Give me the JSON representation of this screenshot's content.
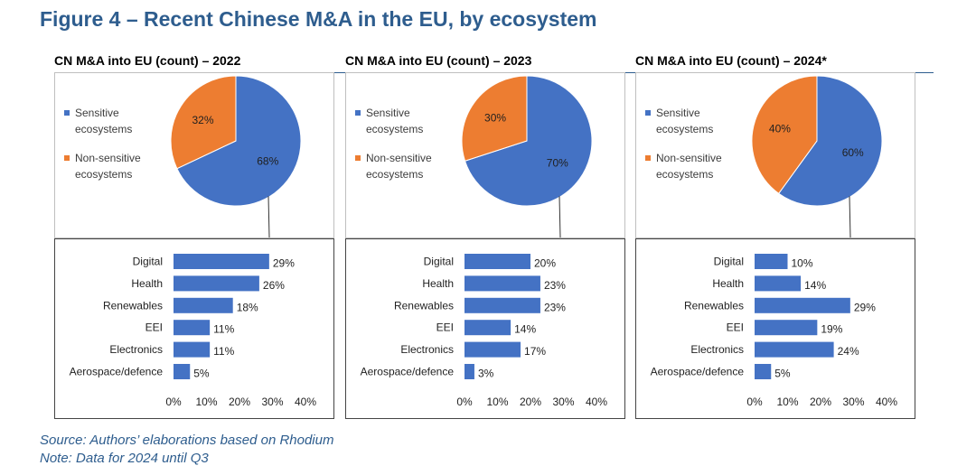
{
  "figure_title": "Figure 4 – Recent Chinese M&A in the EU, by ecosystem",
  "source": "Source: Authors’ elaborations based on Rhodium",
  "note": "Note: Data for 2024 until Q3",
  "colors": {
    "sensitive": "#4472c4",
    "non_sensitive": "#ed7d31",
    "title": "#2e5d8e"
  },
  "panels": [
    {
      "title": "CN M&A into EU (count) – 2022",
      "legend": {
        "sensitive": "Sensitive ecosystems",
        "non_sensitive": "Non-sensitive ecosystems"
      },
      "pie": {
        "sensitive_pct": 68,
        "non_sensitive_pct": 32,
        "sensitive_label": "68%",
        "non_sensitive_label": "32%"
      },
      "bars": [
        {
          "label": "Digital",
          "value": 29,
          "value_label": "29%"
        },
        {
          "label": "Health",
          "value": 26,
          "value_label": "26%"
        },
        {
          "label": "Renewables",
          "value": 18,
          "value_label": "18%"
        },
        {
          "label": "EEI",
          "value": 11,
          "value_label": "11%"
        },
        {
          "label": "Electronics",
          "value": 11,
          "value_label": "11%"
        },
        {
          "label": "Aerospace/defence",
          "value": 5,
          "value_label": "5%"
        }
      ],
      "x_ticks": [
        "0%",
        "10%",
        "20%",
        "30%",
        "40%"
      ]
    },
    {
      "title": "CN M&A into EU (count) – 2023",
      "legend": {
        "sensitive": "Sensitive ecosystems",
        "non_sensitive": "Non-sensitive ecosystems"
      },
      "pie": {
        "sensitive_pct": 70,
        "non_sensitive_pct": 30,
        "sensitive_label": "70%",
        "non_sensitive_label": "30%"
      },
      "bars": [
        {
          "label": "Digital",
          "value": 20,
          "value_label": "20%"
        },
        {
          "label": "Health",
          "value": 23,
          "value_label": "23%"
        },
        {
          "label": "Renewables",
          "value": 23,
          "value_label": "23%"
        },
        {
          "label": "EEI",
          "value": 14,
          "value_label": "14%"
        },
        {
          "label": "Electronics",
          "value": 17,
          "value_label": "17%"
        },
        {
          "label": "Aerospace/defence",
          "value": 3,
          "value_label": "3%"
        }
      ],
      "x_ticks": [
        "0%",
        "10%",
        "20%",
        "30%",
        "40%"
      ]
    },
    {
      "title": "CN M&A into EU (count) – 2024*",
      "legend": {
        "sensitive": "Sensitive ecosystems",
        "non_sensitive": "Non-sensitive ecosystems"
      },
      "pie": {
        "sensitive_pct": 60,
        "non_sensitive_pct": 40,
        "sensitive_label": "60%",
        "non_sensitive_label": "40%"
      },
      "bars": [
        {
          "label": "Digital",
          "value": 10,
          "value_label": "10%"
        },
        {
          "label": "Health",
          "value": 14,
          "value_label": "14%"
        },
        {
          "label": "Renewables",
          "value": 29,
          "value_label": "29%"
        },
        {
          "label": "EEI",
          "value": 19,
          "value_label": "19%"
        },
        {
          "label": "Electronics",
          "value": 24,
          "value_label": "24%"
        },
        {
          "label": "Aerospace/defence",
          "value": 5,
          "value_label": "5%"
        }
      ],
      "x_ticks": [
        "0%",
        "10%",
        "20%",
        "30%",
        "40%"
      ]
    }
  ],
  "chart_data": [
    {
      "type": "pie",
      "title": "CN M&A into EU (count) – 2022",
      "categories": [
        "Sensitive ecosystems",
        "Non-sensitive ecosystems"
      ],
      "values": [
        68,
        32
      ]
    },
    {
      "type": "bar",
      "title": "",
      "categories": [
        "Digital",
        "Health",
        "Renewables",
        "EEI",
        "Electronics",
        "Aerospace/defence"
      ],
      "values": [
        29,
        26,
        18,
        11,
        11,
        5
      ],
      "xlim": [
        0,
        40
      ]
    },
    {
      "type": "pie",
      "title": "CN M&A into EU (count) – 2023",
      "categories": [
        "Sensitive ecosystems",
        "Non-sensitive ecosystems"
      ],
      "values": [
        70,
        30
      ]
    },
    {
      "type": "bar",
      "title": "",
      "categories": [
        "Digital",
        "Health",
        "Renewables",
        "EEI",
        "Electronics",
        "Aerospace/defence"
      ],
      "values": [
        20,
        23,
        23,
        14,
        17,
        3
      ],
      "xlim": [
        0,
        40
      ]
    },
    {
      "type": "pie",
      "title": "CN M&A into EU (count) – 2024*",
      "categories": [
        "Sensitive ecosystems",
        "Non-sensitive ecosystems"
      ],
      "values": [
        60,
        40
      ]
    },
    {
      "type": "bar",
      "title": "",
      "categories": [
        "Digital",
        "Health",
        "Renewables",
        "EEI",
        "Electronics",
        "Aerospace/defence"
      ],
      "values": [
        10,
        14,
        29,
        19,
        24,
        5
      ],
      "xlim": [
        0,
        40
      ]
    }
  ]
}
